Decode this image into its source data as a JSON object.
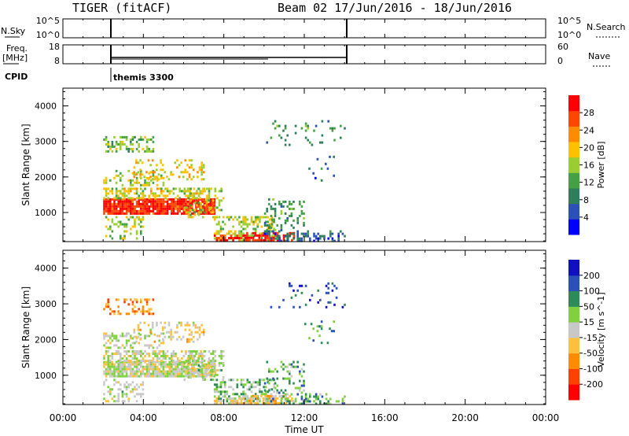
{
  "header": {
    "title_left": "TIGER (fitACF)",
    "title_right": "Beam 02 17/Jun/2016 - 18/Jun/2016"
  },
  "panels": {
    "nsky": {
      "label": "N.Sky",
      "ticks": [
        "10^5",
        "10^0"
      ],
      "right_ticks": [
        "10^5",
        "10^0"
      ],
      "legend": "N.Search"
    },
    "freq": {
      "label_line1": "Freq.",
      "label_line2": "[MHz]",
      "ticks": [
        "18",
        "8"
      ],
      "right_ticks": [
        "60",
        "0"
      ],
      "legend": "Nave"
    },
    "cpid": {
      "label": "CPID",
      "program": "themis 3300"
    }
  },
  "colors": {
    "power": [
      "#0000ff",
      "#2b50b8",
      "#2e7d5b",
      "#45a045",
      "#9acd32",
      "#ffc000",
      "#ff8c00",
      "#ff4500",
      "#ff0000"
    ],
    "velocity": [
      "#ff0000",
      "#ff4000",
      "#ff8c00",
      "#ffc040",
      "#c8c8c8",
      "#80d040",
      "#2e8b57",
      "#2b50b8",
      "#1010c0"
    ]
  },
  "chart_data": [
    {
      "type": "heatmap",
      "name": "power",
      "xlabel": "",
      "ylabel": "Slant Range [km]",
      "xlim": [
        "00:00",
        "24:00"
      ],
      "ylim": [
        180,
        4500
      ],
      "yticks": [
        1000,
        2000,
        3000,
        4000
      ],
      "colorbar_label": "Power [dB]",
      "colorbar_ticks": [
        4,
        8,
        12,
        16,
        20,
        24,
        28
      ],
      "colorbar_range": [
        0,
        32
      ]
    },
    {
      "type": "heatmap",
      "name": "velocity",
      "xlabel": "Time UT",
      "ylabel": "Slant Range [km]",
      "xlim": [
        "00:00",
        "24:00"
      ],
      "ylim": [
        180,
        4500
      ],
      "xticks": [
        "00:00",
        "04:00",
        "08:00",
        "12:00",
        "16:00",
        "20:00",
        "00:00"
      ],
      "yticks": [
        1000,
        2000,
        3000,
        4000
      ],
      "colorbar_label": "Velocity [m s^-1]",
      "colorbar_ticks": [
        "200",
        "100",
        "50",
        "15",
        "-15",
        "-50",
        "-100",
        "-200"
      ]
    }
  ]
}
